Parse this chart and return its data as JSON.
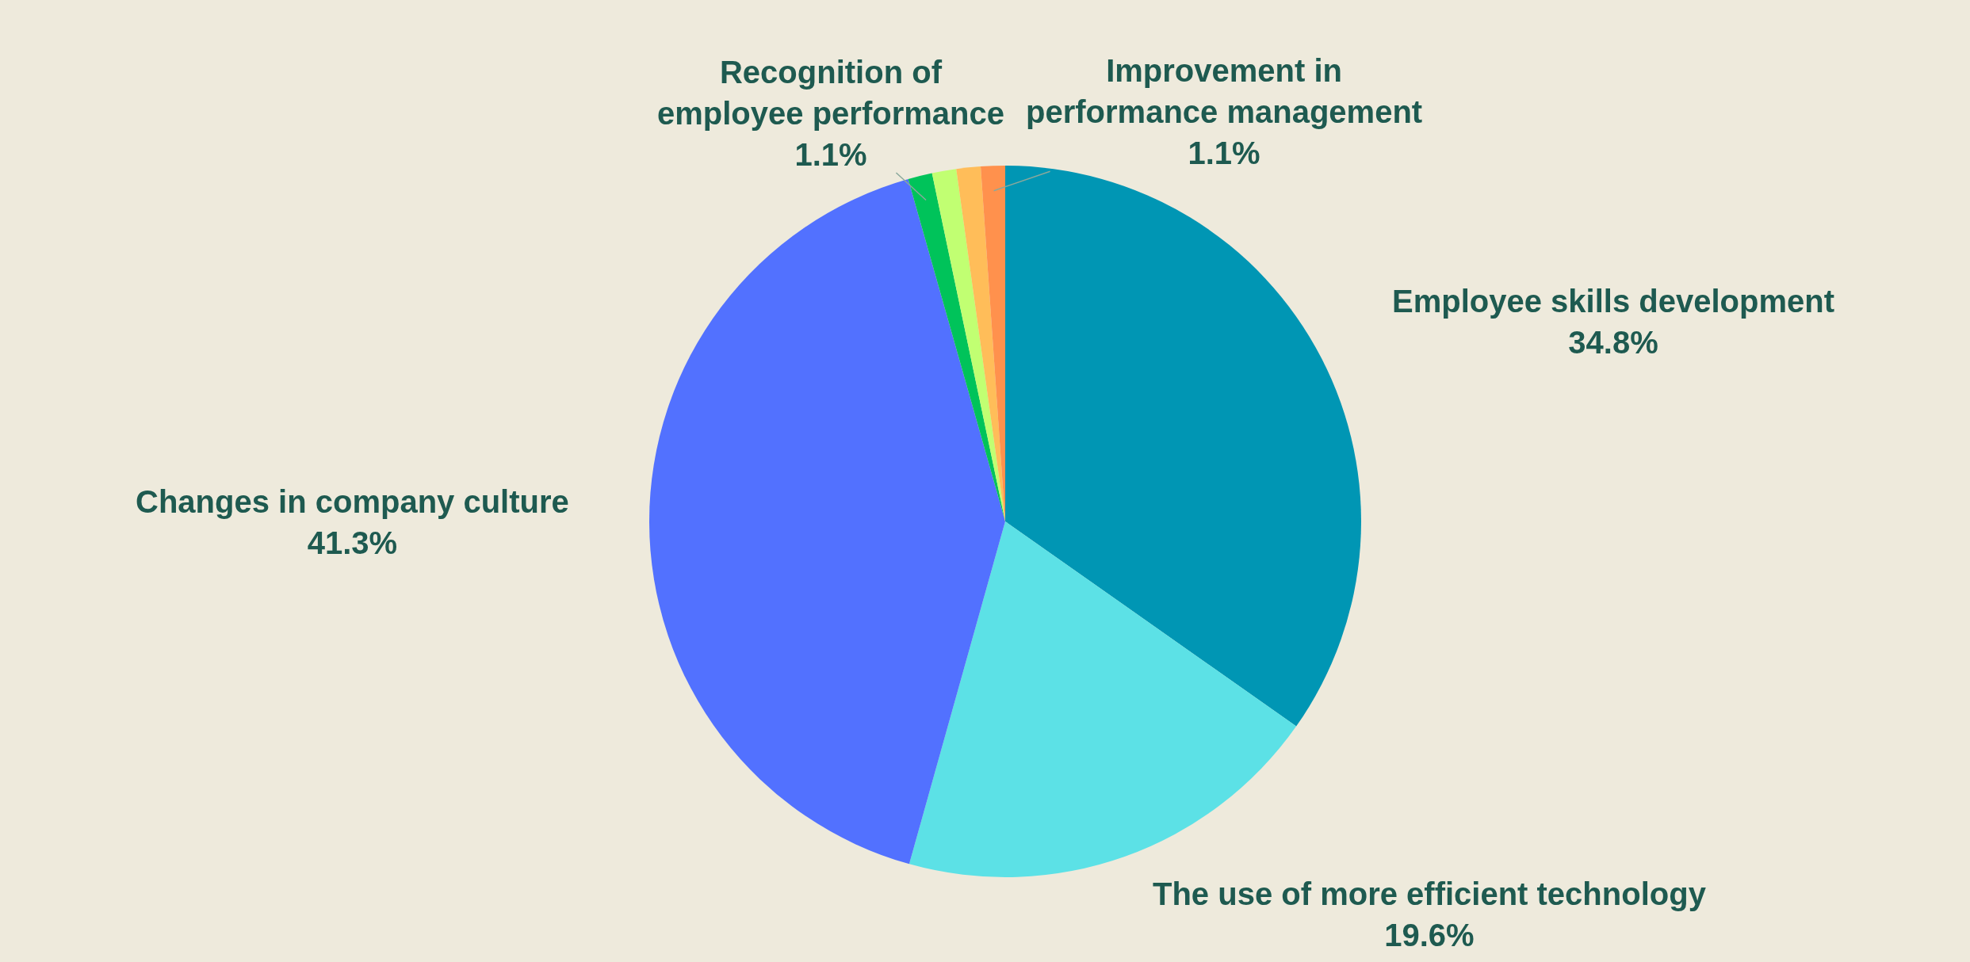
{
  "chart_data": {
    "type": "pie",
    "categories": [
      "Employee skills development",
      "The use of more efficient technology",
      "Changes in company culture",
      "Recognition of employee performance",
      null,
      null,
      "Improvement in performance management"
    ],
    "values": [
      34.8,
      19.6,
      41.3,
      1.1,
      1.1,
      1.1,
      1.1
    ],
    "value_labels": [
      "34.8%",
      "19.6%",
      "41.3%",
      "1.1%",
      null,
      null,
      "1.1%"
    ],
    "colors": [
      "#0096b4",
      "#5ce1e6",
      "#5271ff",
      "#00c35a",
      "#c1ff72",
      "#ffbd59",
      "#ff914d"
    ]
  }
}
